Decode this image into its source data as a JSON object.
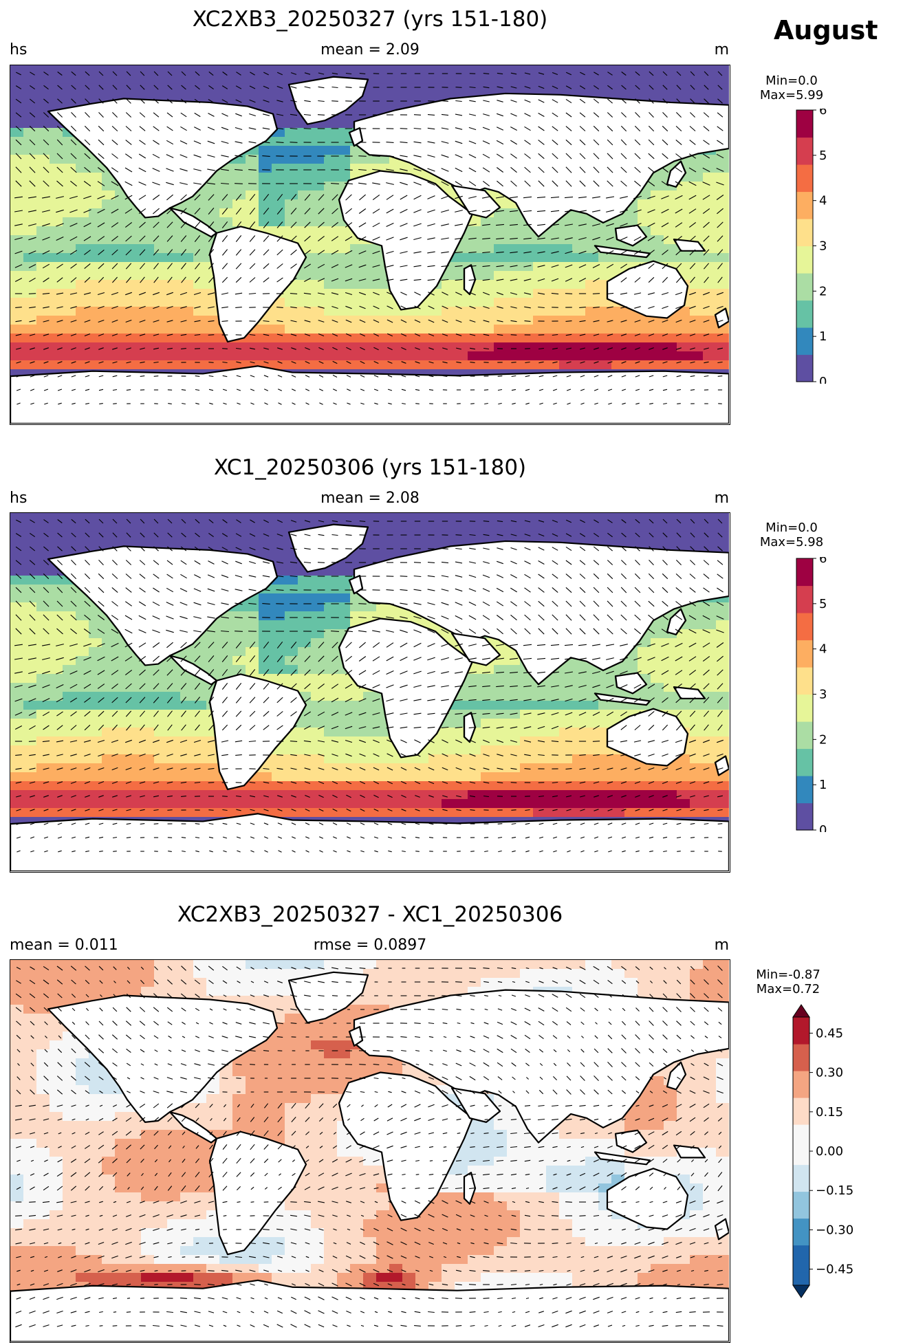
{
  "month": "August",
  "panels": [
    {
      "title": "XC2XB3_20250327 (yrs 151-180)",
      "left_label": "hs",
      "center_label": "mean = 2.09",
      "right_label": "m",
      "cb_min": "Min=0.0",
      "cb_max": "Max=5.99",
      "cb_ticks": [
        "0",
        "1",
        "2",
        "3",
        "4",
        "5",
        "6"
      ],
      "colormap": [
        "#5e4fa2",
        "#3288bd",
        "#66c2a5",
        "#abdda4",
        "#e6f598",
        "#fee08b",
        "#fdae61",
        "#f46d43",
        "#d53e4f",
        "#9e0142"
      ]
    },
    {
      "title": "XC1_20250306 (yrs 151-180)",
      "left_label": "hs",
      "center_label": "mean = 2.08",
      "right_label": "m",
      "cb_min": "Min=0.0",
      "cb_max": "Max=5.98",
      "cb_ticks": [
        "0",
        "1",
        "2",
        "3",
        "4",
        "5",
        "6"
      ],
      "colormap": [
        "#5e4fa2",
        "#3288bd",
        "#66c2a5",
        "#abdda4",
        "#e6f598",
        "#fee08b",
        "#fdae61",
        "#f46d43",
        "#d53e4f",
        "#9e0142"
      ]
    },
    {
      "title": "XC2XB3_20250327 - XC1_20250306",
      "left_label": "mean = 0.011",
      "center_label": "rmse = 0.0897",
      "right_label": "m",
      "cb_min": "Min=-0.87",
      "cb_max": "Max=0.72",
      "cb_ticks": [
        "−0.45",
        "−0.30",
        "−0.15",
        "0.00",
        "0.15",
        "0.30",
        "0.45"
      ],
      "colormap": [
        "#053061",
        "#2166ac",
        "#4393c3",
        "#92c5de",
        "#d1e5f0",
        "#f7f7f7",
        "#fddbc7",
        "#f4a582",
        "#d6604d",
        "#b2182b",
        "#67001f"
      ]
    }
  ]
}
